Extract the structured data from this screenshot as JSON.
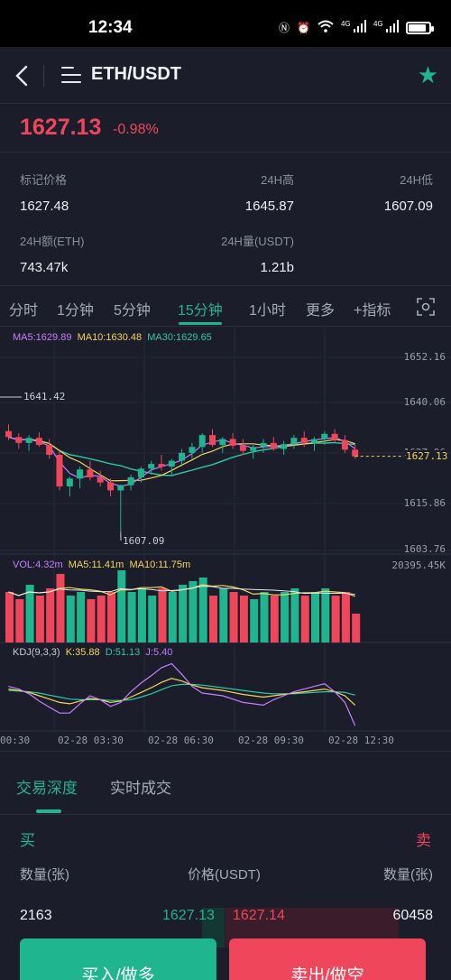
{
  "status_bar": {
    "time": "12:34",
    "signal_1": "4G",
    "signal_2": "4G",
    "battery_level": 0.88
  },
  "nav": {
    "pair": "ETH/USDT"
  },
  "ticker": {
    "last_price": "1627.13",
    "change": "-0.98%"
  },
  "stats": {
    "mark_price_label": "标记价格",
    "mark_price": "1627.48",
    "high_label": "24H高",
    "high": "1645.87",
    "low_label": "24H低",
    "low": "1607.09",
    "turnover_label": "24H额(ETH)",
    "turnover": "743.47k",
    "volume_label": "24H量(USDT)",
    "volume": "1.21b"
  },
  "intervals": [
    "分时",
    "1分钟",
    "5分钟",
    "15分钟",
    "1小时",
    "更多",
    "+指标"
  ],
  "active_interval": "15分钟",
  "chart": {
    "ma_legend": {
      "ma5": "MA5:1629.89",
      "ma10": "MA10:1630.48",
      "ma30": "MA30:1629.65"
    },
    "price_ticks": [
      "1652.16",
      "1640.06",
      "1627.96",
      "1615.86",
      "1603.76"
    ],
    "current_price_tag": "1627.13",
    "high_marker": "1641.42",
    "low_marker": "1607.09",
    "vol_legend": {
      "vol": "VOL:4.32m",
      "ma5": "MA5:11.41m",
      "ma10": "MA10:11.75m"
    },
    "vol_max": "20395.45K",
    "kdj_legend": {
      "name": "KDJ(9,3,3)",
      "k": "K:35.88",
      "d": "D:51.13",
      "j": "J:5.40"
    },
    "time_ticks": [
      "00:30",
      "02-28 03:30",
      "02-28 06:30",
      "02-28 09:30",
      "02-28 12:30"
    ],
    "colors": {
      "up": "#1fb58f",
      "down": "#f0465b",
      "ma5": "#c77dff",
      "ma10": "#f3d55b",
      "ma30": "#2fc8a8"
    }
  },
  "chart_data": {
    "type": "candlestick",
    "ylim": [
      1603.76,
      1652.16
    ],
    "candles": [
      [
        1633.5,
        1635.2,
        1631.2,
        1632.0
      ],
      [
        1632.0,
        1633.0,
        1629.0,
        1630.5
      ],
      [
        1630.5,
        1632.5,
        1628.5,
        1631.8
      ],
      [
        1631.8,
        1633.2,
        1629.5,
        1630.0
      ],
      [
        1630.0,
        1631.5,
        1626.5,
        1627.5
      ],
      [
        1627.5,
        1628.5,
        1618.5,
        1619.5
      ],
      [
        1619.5,
        1622.0,
        1617.0,
        1621.5
      ],
      [
        1621.5,
        1624.5,
        1619.0,
        1623.8
      ],
      [
        1623.8,
        1626.0,
        1621.0,
        1621.8
      ],
      [
        1621.8,
        1623.5,
        1619.5,
        1620.5
      ],
      [
        1620.5,
        1621.5,
        1617.0,
        1618.5
      ],
      [
        1618.5,
        1620.0,
        1608.0,
        1619.8
      ],
      [
        1619.8,
        1622.5,
        1618.5,
        1621.8
      ],
      [
        1621.8,
        1624.5,
        1620.5,
        1624.0
      ],
      [
        1624.0,
        1626.0,
        1622.5,
        1625.2
      ],
      [
        1625.2,
        1627.5,
        1623.5,
        1624.5
      ],
      [
        1624.5,
        1626.5,
        1622.5,
        1626.0
      ],
      [
        1626.0,
        1629.0,
        1624.5,
        1628.0
      ],
      [
        1628.0,
        1630.5,
        1626.5,
        1629.5
      ],
      [
        1629.5,
        1633.0,
        1628.0,
        1632.5
      ],
      [
        1632.5,
        1634.0,
        1629.5,
        1630.0
      ],
      [
        1630.0,
        1632.0,
        1628.0,
        1631.5
      ],
      [
        1631.5,
        1633.0,
        1629.0,
        1629.8
      ],
      [
        1629.8,
        1631.5,
        1627.5,
        1628.5
      ],
      [
        1628.5,
        1630.0,
        1626.5,
        1629.5
      ],
      [
        1629.5,
        1631.5,
        1628.0,
        1630.5
      ],
      [
        1630.5,
        1632.0,
        1628.5,
        1629.0
      ],
      [
        1629.0,
        1631.0,
        1627.5,
        1630.2
      ],
      [
        1630.2,
        1632.5,
        1629.0,
        1631.8
      ],
      [
        1631.8,
        1633.5,
        1629.5,
        1630.5
      ],
      [
        1630.5,
        1632.0,
        1628.5,
        1631.5
      ],
      [
        1631.5,
        1633.5,
        1630.0,
        1632.8
      ],
      [
        1632.8,
        1634.0,
        1630.5,
        1631.2
      ],
      [
        1631.2,
        1632.5,
        1628.0,
        1628.8
      ],
      [
        1628.8,
        1630.0,
        1626.5,
        1627.1
      ]
    ],
    "volumes": [
      14,
      12,
      16,
      13,
      15,
      19,
      13,
      14,
      12,
      13,
      14,
      20,
      14,
      15,
      13,
      15,
      14,
      16,
      17,
      18,
      13,
      15,
      14,
      13,
      12,
      14,
      13,
      14,
      15,
      13,
      14,
      15,
      13,
      14,
      8
    ],
    "kdj": {
      "k": [
        60,
        58,
        55,
        50,
        45,
        40,
        38,
        42,
        46,
        44,
        40,
        42,
        48,
        55,
        62,
        70,
        76,
        72,
        66,
        62,
        60,
        58,
        55,
        52,
        50,
        48,
        50,
        52,
        54,
        56,
        58,
        60,
        56,
        50,
        36
      ],
      "d": [
        58,
        57,
        56,
        54,
        51,
        48,
        45,
        44,
        44,
        44,
        43,
        43,
        44,
        48,
        53,
        59,
        65,
        67,
        67,
        66,
        64,
        62,
        60,
        58,
        56,
        54,
        53,
        53,
        53,
        54,
        55,
        56,
        56,
        55,
        51
      ],
      "j": [
        64,
        60,
        53,
        42,
        33,
        24,
        24,
        38,
        50,
        44,
        34,
        40,
        56,
        69,
        80,
        92,
        98,
        82,
        64,
        54,
        52,
        50,
        45,
        40,
        38,
        36,
        44,
        50,
        56,
        60,
        64,
        68,
        56,
        40,
        5
      ]
    }
  },
  "tabs": [
    "交易深度",
    "实时成交"
  ],
  "order_book": {
    "buy_label": "买",
    "sell_label": "卖",
    "col_qty": "数量(张)",
    "col_price": "价格(USDT)",
    "col_qty_right": "数量(张)",
    "bid_qty": "2163",
    "bid_price": "1627.13",
    "ask_price": "1627.14",
    "ask_qty": "60458"
  },
  "actions": {
    "buy": "买入/做多",
    "sell": "卖出/做空"
  }
}
